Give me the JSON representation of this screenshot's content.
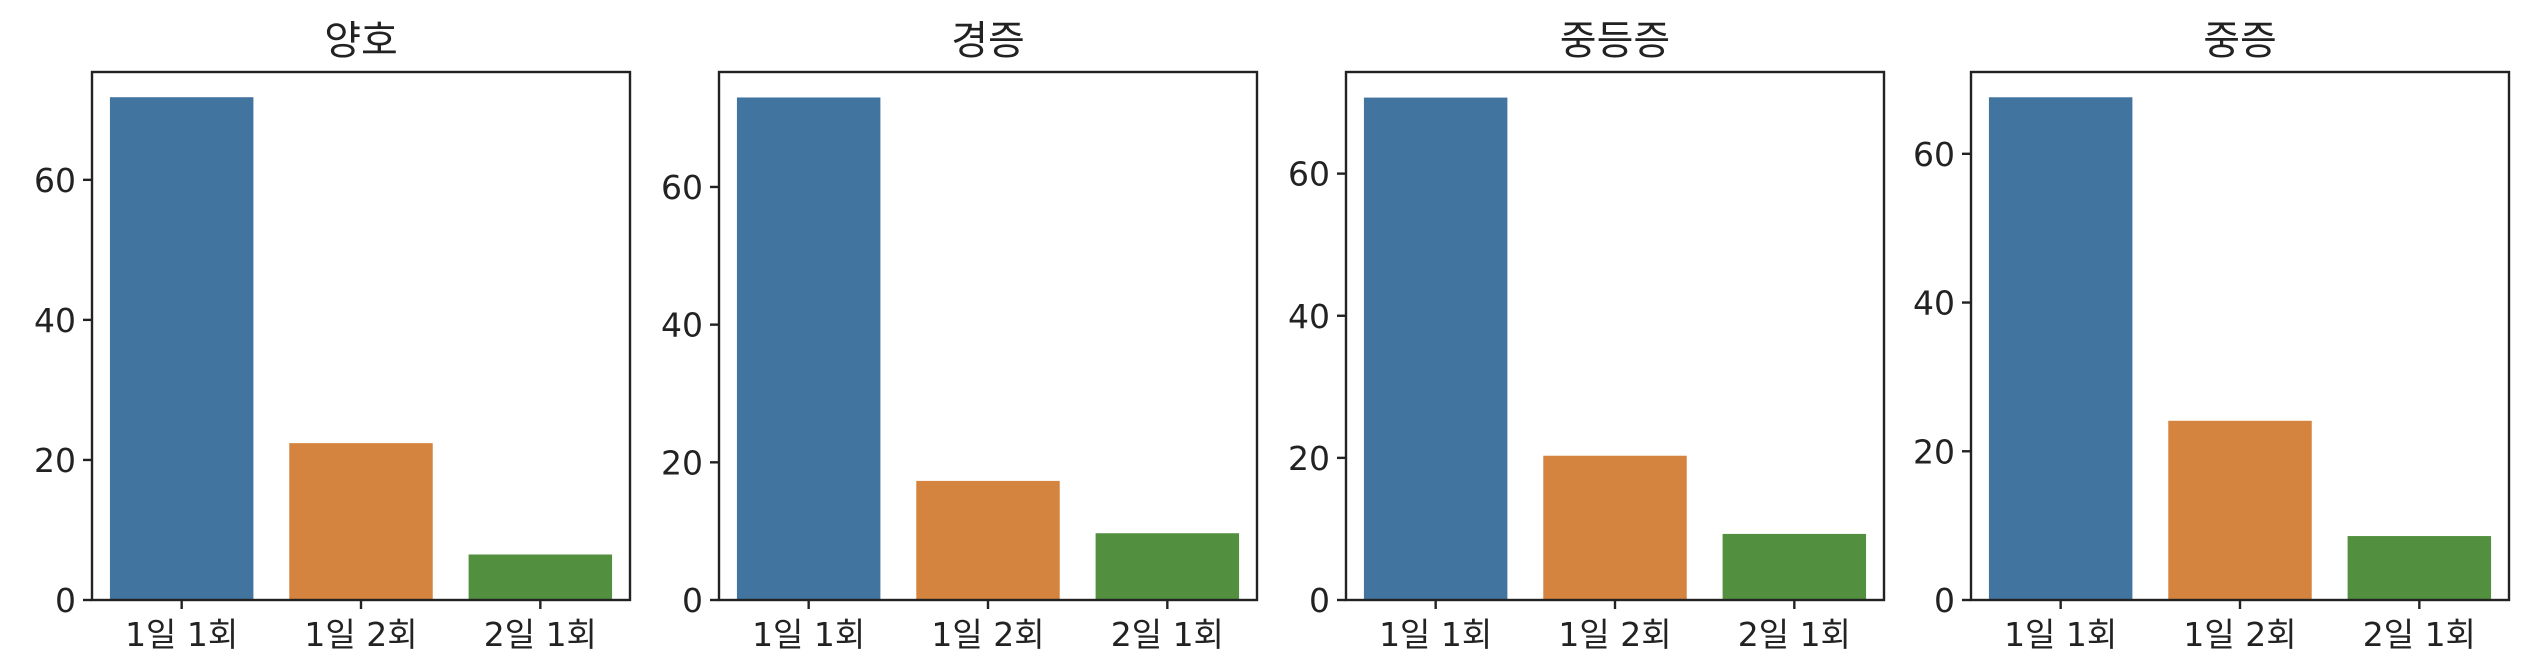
{
  "chart_data": [
    {
      "type": "bar",
      "title": "양호",
      "categories": [
        "1일 1회",
        "1일 2회",
        "2일 1회"
      ],
      "values": [
        71.8,
        22.4,
        6.5
      ],
      "ylim": [
        0,
        75.4
      ],
      "yticks": [
        0,
        20,
        40,
        60
      ],
      "colors": [
        "#4274a0",
        "#d4843e",
        "#52903f"
      ],
      "xlabel": "",
      "ylabel": ""
    },
    {
      "type": "bar",
      "title": "경증",
      "categories": [
        "1일 1회",
        "1일 2회",
        "2일 1회"
      ],
      "values": [
        73.0,
        17.3,
        9.7
      ],
      "ylim": [
        0,
        76.7
      ],
      "yticks": [
        0,
        20,
        40,
        60
      ],
      "colors": [
        "#4274a0",
        "#d4843e",
        "#52903f"
      ],
      "xlabel": "",
      "ylabel": ""
    },
    {
      "type": "bar",
      "title": "중등증",
      "categories": [
        "1일 1회",
        "1일 2회",
        "2일 1회"
      ],
      "values": [
        70.7,
        20.3,
        9.3
      ],
      "ylim": [
        0,
        74.3
      ],
      "yticks": [
        0,
        20,
        40,
        60
      ],
      "colors": [
        "#4274a0",
        "#d4843e",
        "#52903f"
      ],
      "xlabel": "",
      "ylabel": ""
    },
    {
      "type": "bar",
      "title": "중증",
      "categories": [
        "1일 1회",
        "1일 2회",
        "2일 1회"
      ],
      "values": [
        67.6,
        24.1,
        8.6
      ],
      "ylim": [
        0,
        71.0
      ],
      "yticks": [
        0,
        20,
        40,
        60
      ],
      "colors": [
        "#4274a0",
        "#d4843e",
        "#52903f"
      ],
      "xlabel": "",
      "ylabel": ""
    }
  ]
}
